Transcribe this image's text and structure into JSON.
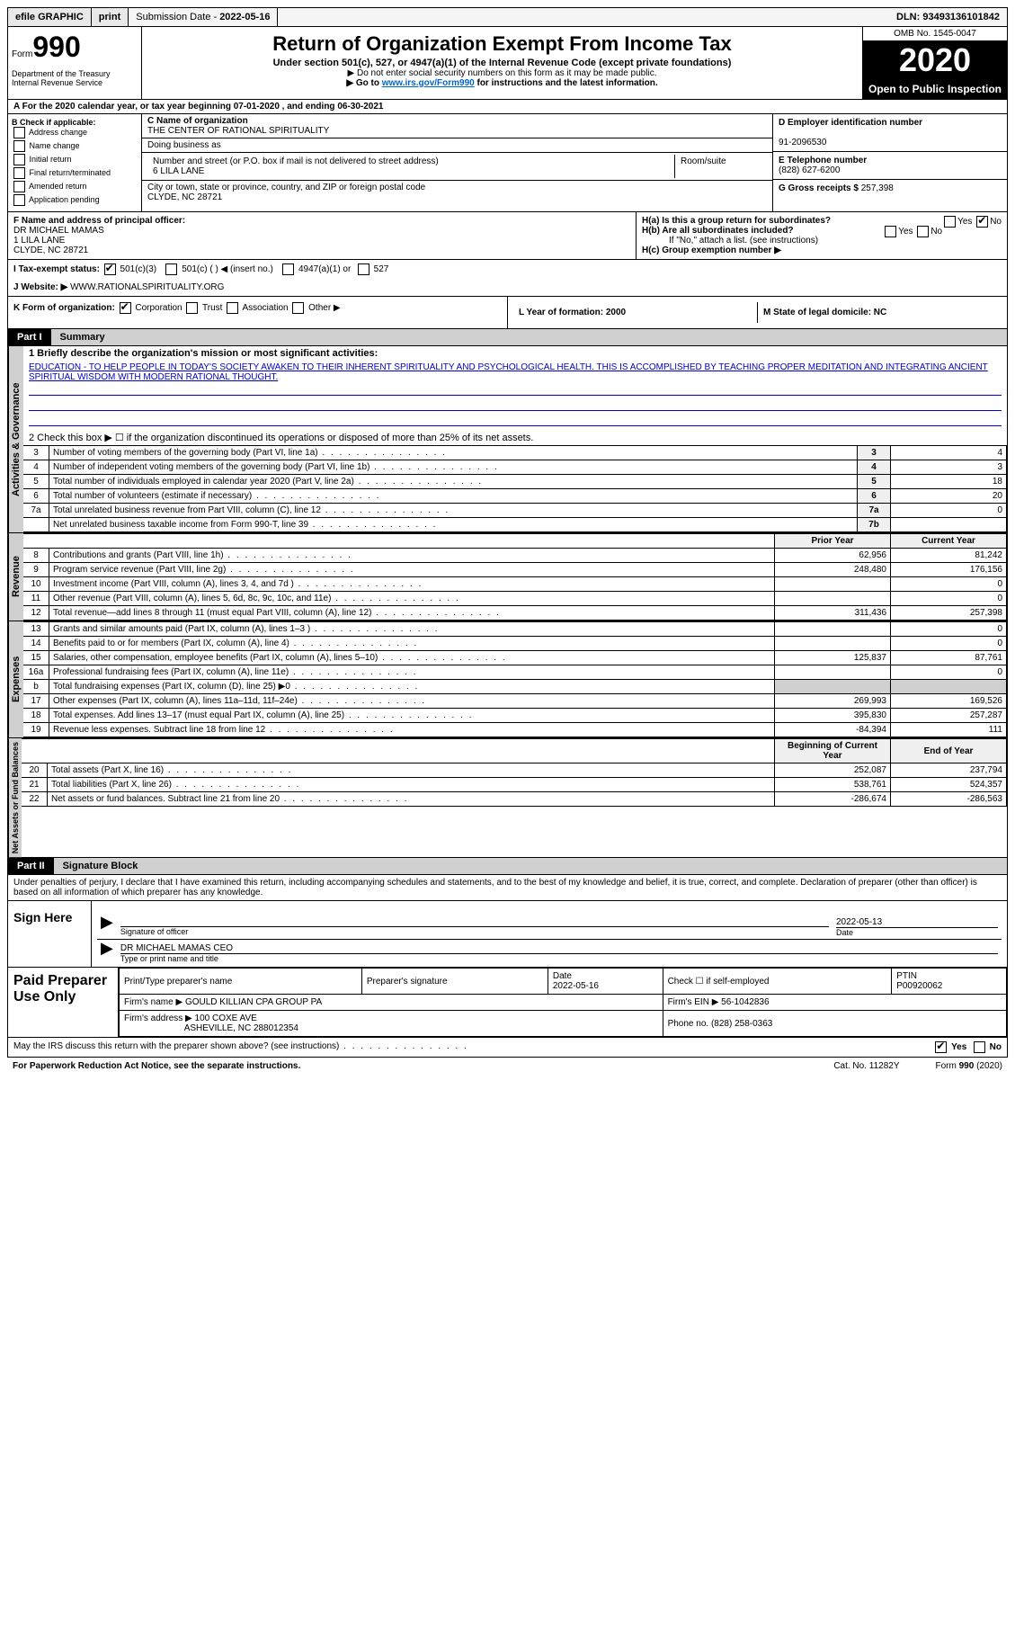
{
  "top_bar": {
    "efile": "efile GRAPHIC",
    "print": "print",
    "submission_label": "Submission Date -",
    "submission_date": "2022-05-16",
    "dln_label": "DLN:",
    "dln": "93493136101842"
  },
  "header": {
    "form_label": "Form",
    "form_number": "990",
    "dept": "Department of the Treasury\nInternal Revenue Service",
    "title": "Return of Organization Exempt From Income Tax",
    "subtitle": "Under section 501(c), 527, or 4947(a)(1) of the Internal Revenue Code (except private foundations)",
    "note1": "▶ Do not enter social security numbers on this form as it may be made public.",
    "note2_pre": "▶ Go to ",
    "note2_link": "www.irs.gov/Form990",
    "note2_post": " for instructions and the latest information.",
    "omb": "OMB No. 1545-0047",
    "year": "2020",
    "otp": "Open to Public Inspection"
  },
  "row_a": "A For the 2020 calendar year, or tax year beginning 07-01-2020   , and ending 06-30-2021",
  "section_b": {
    "header": "B Check if applicable:",
    "checks": [
      "Address change",
      "Name change",
      "Initial return",
      "Final return/terminated",
      "Amended return",
      "Application pending"
    ],
    "c_label": "C Name of organization",
    "c_name": "THE CENTER OF RATIONAL SPIRITUALITY",
    "dba_label": "Doing business as",
    "addr_label": "Number and street (or P.O. box if mail is not delivered to street address)",
    "room_label": "Room/suite",
    "addr": "6 LILA LANE",
    "city_label": "City or town, state or province, country, and ZIP or foreign postal code",
    "city": "CLYDE, NC  28721",
    "d_label": "D Employer identification number",
    "d_ein": "91-2096530",
    "e_label": "E Telephone number",
    "e_phone": "(828) 627-6200",
    "g_label": "G Gross receipts $",
    "g_amount": "257,398"
  },
  "row_fh": {
    "f_label": "F Name and address of principal officer:",
    "f_name": "DR MICHAEL MAMAS",
    "f_addr1": "1 LILA LANE",
    "f_addr2": "CLYDE, NC  28721",
    "ha": "H(a)  Is this a group return for subordinates?",
    "ha_no": "No",
    "hb": "H(b)  Are all subordinates included?",
    "hb_note": "If \"No,\" attach a list. (see instructions)",
    "hc": "H(c)  Group exemption number ▶"
  },
  "row_i": {
    "label": "I  Tax-exempt status:",
    "opt1": "501(c)(3)",
    "opt2": "501(c) (  ) ◀ (insert no.)",
    "opt3": "4947(a)(1) or",
    "opt4": "527"
  },
  "row_j": {
    "label": "J  Website: ▶",
    "value": "WWW.RATIONALSPIRITUALITY.ORG"
  },
  "row_k": {
    "label": "K Form of organization:",
    "opts": [
      "Corporation",
      "Trust",
      "Association",
      "Other ▶"
    ],
    "l": "L Year of formation: 2000",
    "m": "M State of legal domicile: NC"
  },
  "part1": {
    "label": "Part I",
    "title": "Summary",
    "line1_label": "1  Briefly describe the organization's mission or most significant activities:",
    "mission": "EDUCATION - TO HELP PEOPLE IN TODAY'S SOCIETY AWAKEN TO THEIR INHERENT SPIRITUALITY AND PSYCHOLOGICAL HEALTH. THIS IS ACCOMPLISHED BY TEACHING PROPER MEDITATION AND INTEGRATING ANCIENT SPIRITUAL WISDOM WITH MODERN RATIONAL THOUGHT.",
    "line2": "2  Check this box ▶ ☐  if the organization discontinued its operations or disposed of more than 25% of its net assets.",
    "governance_rows": [
      {
        "n": "3",
        "label": "Number of voting members of the governing body (Part VI, line 1a)",
        "box": "3",
        "val": "4"
      },
      {
        "n": "4",
        "label": "Number of independent voting members of the governing body (Part VI, line 1b)",
        "box": "4",
        "val": "3"
      },
      {
        "n": "5",
        "label": "Total number of individuals employed in calendar year 2020 (Part V, line 2a)",
        "box": "5",
        "val": "18"
      },
      {
        "n": "6",
        "label": "Total number of volunteers (estimate if necessary)",
        "box": "6",
        "val": "20"
      },
      {
        "n": "7a",
        "label": "Total unrelated business revenue from Part VIII, column (C), line 12",
        "box": "7a",
        "val": "0"
      },
      {
        "n": "",
        "label": "Net unrelated business taxable income from Form 990-T, line 39",
        "box": "7b",
        "val": ""
      }
    ],
    "col_headers": {
      "prior": "Prior Year",
      "current": "Current Year",
      "boy": "Beginning of Current Year",
      "eoy": "End of Year"
    },
    "revenue_rows": [
      {
        "n": "8",
        "label": "Contributions and grants (Part VIII, line 1h)",
        "py": "62,956",
        "cy": "81,242"
      },
      {
        "n": "9",
        "label": "Program service revenue (Part VIII, line 2g)",
        "py": "248,480",
        "cy": "176,156"
      },
      {
        "n": "10",
        "label": "Investment income (Part VIII, column (A), lines 3, 4, and 7d )",
        "py": "",
        "cy": "0"
      },
      {
        "n": "11",
        "label": "Other revenue (Part VIII, column (A), lines 5, 6d, 8c, 9c, 10c, and 11e)",
        "py": "",
        "cy": "0"
      },
      {
        "n": "12",
        "label": "Total revenue—add lines 8 through 11 (must equal Part VIII, column (A), line 12)",
        "py": "311,436",
        "cy": "257,398"
      }
    ],
    "expense_rows": [
      {
        "n": "13",
        "label": "Grants and similar amounts paid (Part IX, column (A), lines 1–3 )",
        "py": "",
        "cy": "0"
      },
      {
        "n": "14",
        "label": "Benefits paid to or for members (Part IX, column (A), line 4)",
        "py": "",
        "cy": "0"
      },
      {
        "n": "15",
        "label": "Salaries, other compensation, employee benefits (Part IX, column (A), lines 5–10)",
        "py": "125,837",
        "cy": "87,761"
      },
      {
        "n": "16a",
        "label": "Professional fundraising fees (Part IX, column (A), line 11e)",
        "py": "",
        "cy": "0"
      },
      {
        "n": "b",
        "label": "Total fundraising expenses (Part IX, column (D), line 25) ▶0",
        "py": "shade",
        "cy": "shade"
      },
      {
        "n": "17",
        "label": "Other expenses (Part IX, column (A), lines 11a–11d, 11f–24e)",
        "py": "269,993",
        "cy": "169,526"
      },
      {
        "n": "18",
        "label": "Total expenses. Add lines 13–17 (must equal Part IX, column (A), line 25)",
        "py": "395,830",
        "cy": "257,287"
      },
      {
        "n": "19",
        "label": "Revenue less expenses. Subtract line 18 from line 12",
        "py": "-84,394",
        "cy": "111"
      }
    ],
    "netassets_rows": [
      {
        "n": "20",
        "label": "Total assets (Part X, line 16)",
        "py": "252,087",
        "cy": "237,794"
      },
      {
        "n": "21",
        "label": "Total liabilities (Part X, line 26)",
        "py": "538,761",
        "cy": "524,357"
      },
      {
        "n": "22",
        "label": "Net assets or fund balances. Subtract line 21 from line 20",
        "py": "-286,674",
        "cy": "-286,563"
      }
    ],
    "vert_labels": {
      "gov": "Activities & Governance",
      "rev": "Revenue",
      "exp": "Expenses",
      "na": "Net Assets or Fund Balances"
    }
  },
  "part2": {
    "label": "Part II",
    "title": "Signature Block",
    "penalties": "Under penalties of perjury, I declare that I have examined this return, including accompanying schedules and statements, and to the best of my knowledge and belief, it is true, correct, and complete. Declaration of preparer (other than officer) is based on all information of which preparer has any knowledge.",
    "sign_here": "Sign Here",
    "sig_officer": "Signature of officer",
    "sig_date": "Date",
    "sig_date_val": "2022-05-13",
    "officer_name": "DR MICHAEL MAMAS CEO",
    "type_name": "Type or print name and title",
    "paid_prep": "Paid Preparer Use Only",
    "prep_headers": [
      "Print/Type preparer's name",
      "Preparer's signature",
      "Date",
      "Check ☐ if self-employed",
      "PTIN"
    ],
    "prep_date": "2022-05-16",
    "ptin": "P00920062",
    "firm_name_label": "Firm's name    ▶",
    "firm_name": "GOULD KILLIAN CPA GROUP PA",
    "firm_ein_label": "Firm's EIN ▶",
    "firm_ein": "56-1042836",
    "firm_addr_label": "Firm's address ▶",
    "firm_addr": "100 COXE AVE",
    "firm_city": "ASHEVILLE, NC  288012354",
    "firm_phone_label": "Phone no.",
    "firm_phone": "(828) 258-0363",
    "discuss": "May the IRS discuss this return with the preparer shown above? (see instructions)",
    "yes": "Yes",
    "no": "No"
  },
  "footer": {
    "left": "For Paperwork Reduction Act Notice, see the separate instructions.",
    "mid": "Cat. No. 11282Y",
    "right": "Form 990 (2020)"
  }
}
